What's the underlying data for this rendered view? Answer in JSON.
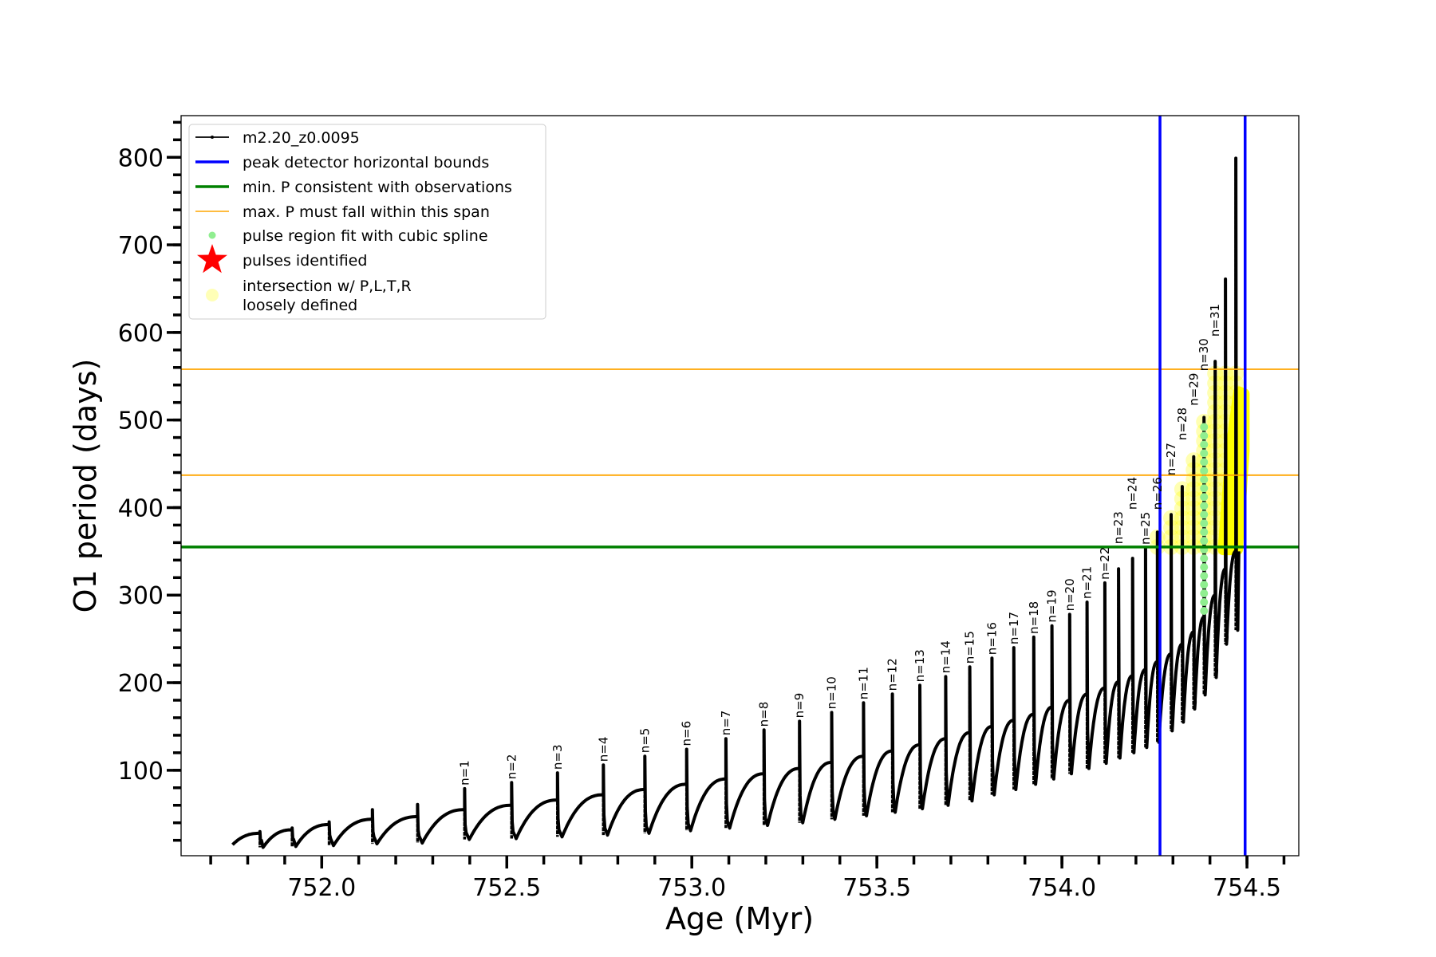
{
  "chart_data": {
    "type": "line",
    "xlabel": "Age (Myr)",
    "ylabel": "O1 period (days)",
    "xlim": [
      751.62,
      754.64
    ],
    "ylim": [
      2.4,
      847.6
    ],
    "xticks": [
      752.0,
      752.5,
      753.0,
      753.5,
      754.0,
      754.5
    ],
    "xtick_labels": [
      "752.0",
      "752.5",
      "753.0",
      "753.5",
      "754.0",
      "754.5"
    ],
    "yticks": [
      100,
      200,
      300,
      400,
      500,
      600,
      700,
      800
    ],
    "ytick_labels": [
      "100",
      "200",
      "300",
      "400",
      "500",
      "600",
      "700",
      "800"
    ],
    "grid": false,
    "legend_position": "top-left",
    "legend": [
      {
        "label": "m2.20_z0.0095",
        "kind": "line-marker",
        "color": "#000000"
      },
      {
        "label": "peak detector horizontal bounds",
        "kind": "line",
        "color": "#0000ff"
      },
      {
        "label": "min. P consistent with observations",
        "kind": "line",
        "color": "#008000"
      },
      {
        "label": "max. P must fall within this span",
        "kind": "thin-line",
        "color": "#ffa500"
      },
      {
        "label": "pulse region fit with cubic spline",
        "kind": "dot",
        "color": "#90ee90"
      },
      {
        "label": "pulses identified",
        "kind": "star",
        "color": "#ff0000"
      },
      {
        "label": "intersection w/ P,L,T,R",
        "label2": "loosely defined",
        "kind": "circle",
        "color": "#ffff99"
      }
    ],
    "series": [
      {
        "name": "m2.20_z0.0095",
        "color": "#000000",
        "start": {
          "age": 751.759,
          "period": 15
        },
        "end": {
          "age": 754.478,
          "period": 350
        },
        "pulses": [
          {
            "age": 751.833,
            "pre": 28,
            "peak": 30,
            "min": 12,
            "label": ""
          },
          {
            "age": 751.92,
            "pre": 32,
            "peak": 34,
            "min": 13,
            "label": ""
          },
          {
            "age": 752.02,
            "pre": 38,
            "peak": 41,
            "min": 14,
            "label": ""
          },
          {
            "age": 752.137,
            "pre": 44,
            "peak": 55,
            "min": 16,
            "label": ""
          },
          {
            "age": 752.259,
            "pre": 47,
            "peak": 61,
            "min": 17,
            "label": ""
          },
          {
            "age": 752.386,
            "pre": 55,
            "peak": 79,
            "min": 21,
            "label": "n=1"
          },
          {
            "age": 752.513,
            "pre": 60,
            "peak": 86,
            "min": 22,
            "label": "n=2"
          },
          {
            "age": 752.637,
            "pre": 66,
            "peak": 97,
            "min": 24,
            "label": "n=3"
          },
          {
            "age": 752.761,
            "pre": 72,
            "peak": 106,
            "min": 26,
            "label": "n=4"
          },
          {
            "age": 752.873,
            "pre": 78,
            "peak": 116,
            "min": 28,
            "label": "n=5"
          },
          {
            "age": 752.986,
            "pre": 84,
            "peak": 124,
            "min": 31,
            "label": "n=6"
          },
          {
            "age": 753.092,
            "pre": 90,
            "peak": 136,
            "min": 34,
            "label": "n=7"
          },
          {
            "age": 753.195,
            "pre": 96,
            "peak": 146,
            "min": 37,
            "label": "n=8"
          },
          {
            "age": 753.291,
            "pre": 102,
            "peak": 156,
            "min": 40,
            "label": "n=9"
          },
          {
            "age": 753.378,
            "pre": 109,
            "peak": 166,
            "min": 44,
            "label": "n=10"
          },
          {
            "age": 753.464,
            "pre": 116,
            "peak": 177,
            "min": 48,
            "label": "n=11"
          },
          {
            "age": 753.542,
            "pre": 122,
            "peak": 187,
            "min": 52,
            "label": "n=12"
          },
          {
            "age": 753.616,
            "pre": 129,
            "peak": 197,
            "min": 56,
            "label": "n=13"
          },
          {
            "age": 753.686,
            "pre": 136,
            "peak": 207,
            "min": 60,
            "label": "n=14"
          },
          {
            "age": 753.751,
            "pre": 143,
            "peak": 218,
            "min": 65,
            "label": "n=15"
          },
          {
            "age": 753.811,
            "pre": 150,
            "peak": 228,
            "min": 72,
            "label": "n=16"
          },
          {
            "age": 753.87,
            "pre": 157,
            "peak": 240,
            "min": 78,
            "label": "n=17"
          },
          {
            "age": 753.924,
            "pre": 164,
            "peak": 252,
            "min": 84,
            "label": "n=18"
          },
          {
            "age": 753.973,
            "pre": 172,
            "peak": 265,
            "min": 90,
            "label": "n=19"
          },
          {
            "age": 754.021,
            "pre": 180,
            "peak": 278,
            "min": 96,
            "label": "n=20"
          },
          {
            "age": 754.068,
            "pre": 187,
            "peak": 292,
            "min": 102,
            "label": "n=21"
          },
          {
            "age": 754.116,
            "pre": 194,
            "peak": 314,
            "min": 108,
            "label": "n=22"
          },
          {
            "age": 754.153,
            "pre": 201,
            "peak": 330,
            "min": 114,
            "label": "n=23"
          },
          {
            "age": 754.191,
            "pre": 208,
            "peak": 342,
            "min": 120,
            "label": "n=24"
          },
          {
            "age": 754.226,
            "pre": 215,
            "peak": 354,
            "min": 126,
            "label": "n=25"
          },
          {
            "age": 754.258,
            "pre": 224,
            "peak": 372,
            "min": 132,
            "label": "n=26"
          },
          {
            "age": 754.295,
            "pre": 233,
            "peak": 392,
            "min": 145,
            "label": "n=27"
          },
          {
            "age": 754.325,
            "pre": 244,
            "peak": 424,
            "min": 155,
            "label": "n=28"
          },
          {
            "age": 754.356,
            "pre": 258,
            "peak": 458,
            "min": 170,
            "label": "n=29"
          },
          {
            "age": 754.384,
            "pre": 275,
            "peak": 503,
            "min": 186,
            "label": "n=30"
          },
          {
            "age": 754.414,
            "pre": 300,
            "peak": 567,
            "min": 206,
            "label": "n=31"
          },
          {
            "age": 754.442,
            "pre": 330,
            "peak": 661,
            "min": 244,
            "label": ""
          },
          {
            "age": 754.47,
            "pre": 350,
            "peak": 799,
            "min": 260,
            "label": ""
          }
        ]
      }
    ],
    "hlines": [
      {
        "name": "min-period",
        "y": 355,
        "color": "#008000"
      },
      {
        "name": "max-period-lower",
        "y": 437,
        "color": "#ffa500"
      },
      {
        "name": "max-period-upper",
        "y": 558,
        "color": "#ffa500"
      }
    ],
    "vlines": [
      {
        "name": "peak-bound-left",
        "x": 754.265,
        "color": "#0000ff"
      },
      {
        "name": "peak-bound-right",
        "x": 754.495,
        "color": "#0000ff"
      }
    ],
    "spline_fit": {
      "age": 754.384,
      "from": 282,
      "to": 500,
      "color": "#90ee90"
    },
    "intersection": {
      "color": "#ffff00",
      "range": [
        355,
        558
      ],
      "dense_region": [
        [
          754.436,
          352
        ],
        [
          754.445,
          400
        ],
        [
          754.458,
          470
        ],
        [
          754.478,
          532
        ],
        [
          754.492,
          530
        ],
        [
          754.492,
          465
        ],
        [
          754.474,
          352
        ]
      ]
    }
  }
}
